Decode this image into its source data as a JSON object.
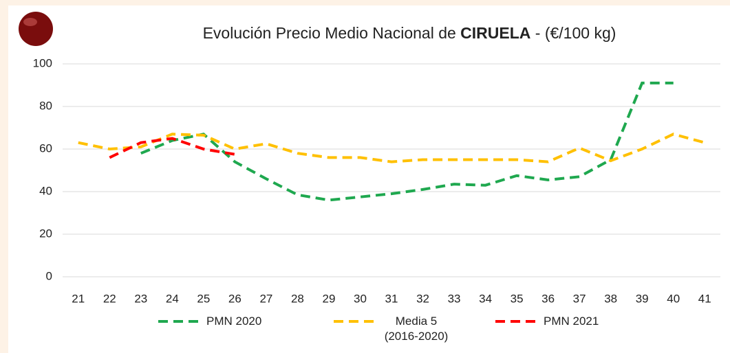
{
  "chart_data": {
    "type": "line",
    "title": [
      "Evolución Precio Medio Nacional de",
      "CIRUELA",
      "- (€/100 kg)"
    ],
    "categories": [
      "21",
      "22",
      "23",
      "24",
      "25",
      "26",
      "27",
      "28",
      "29",
      "30",
      "31",
      "32",
      "33",
      "34",
      "35",
      "36",
      "37",
      "38",
      "39",
      "40",
      "41"
    ],
    "series": [
      {
        "name": "PMN 2020",
        "color": "#1fa84f",
        "values": [
          null,
          null,
          58,
          64,
          67,
          54,
          46,
          38.5,
          36,
          37.5,
          39,
          41,
          43.5,
          43,
          47.5,
          45.5,
          47,
          55,
          91,
          91,
          null
        ]
      },
      {
        "name": "Media 5 (2016-2020)",
        "color": "#ffc000",
        "values": [
          63,
          60,
          61,
          67,
          66.5,
          60,
          62.5,
          58,
          56,
          56,
          54,
          55,
          55,
          55,
          55,
          54,
          60.5,
          54.5,
          60,
          67,
          63
        ]
      },
      {
        "name": "PMN 2021",
        "color": "#ff0000",
        "values": [
          null,
          56,
          63,
          65,
          60,
          57.5,
          null,
          null,
          null,
          null,
          null,
          null,
          null,
          null,
          null,
          null,
          null,
          null,
          null,
          null,
          null
        ]
      }
    ],
    "ylim": [
      0,
      100
    ],
    "yticks": [
      0,
      20,
      40,
      60,
      80,
      100
    ],
    "grid": true
  }
}
